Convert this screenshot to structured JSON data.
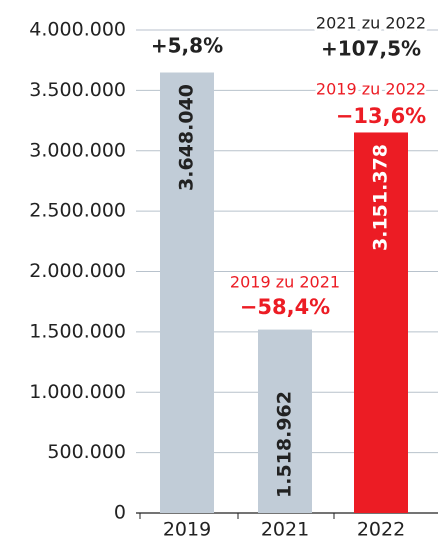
{
  "chart_data": {
    "type": "bar",
    "categories": [
      "2019",
      "2021",
      "2022"
    ],
    "values": [
      3648040,
      1518962,
      3151378
    ],
    "value_labels": [
      "3.648.040",
      "1.518.962",
      "3.151.378"
    ],
    "colors": [
      "#c1ccd7",
      "#c1ccd7",
      "#ec1c24"
    ],
    "ylim": [
      0,
      4000000
    ],
    "yticks": [
      {
        "value": 0,
        "label": "0"
      },
      {
        "value": 500000,
        "label": "500.000"
      },
      {
        "value": 1000000,
        "label": "1.000.000"
      },
      {
        "value": 1500000,
        "label": "1.500.000"
      },
      {
        "value": 2000000,
        "label": "2.000.000"
      },
      {
        "value": 2500000,
        "label": "2.500.000"
      },
      {
        "value": 3000000,
        "label": "3.000.000"
      },
      {
        "value": 3500000,
        "label": "3.500.000"
      },
      {
        "value": 4000000,
        "label": "4.000.000"
      }
    ],
    "grid": true,
    "annotations": [
      {
        "text": "+5,8%",
        "color": "#222222"
      },
      {
        "text": "2019 zu 2021",
        "color": "#ec1c24"
      },
      {
        "text": "−58,4%",
        "color": "#ec1c24"
      },
      {
        "text": "2021 zu 2022",
        "color": "#222222"
      },
      {
        "text": "+107,5%",
        "color": "#222222"
      },
      {
        "text": "2019 zu 2022",
        "color": "#ec1c24"
      },
      {
        "text": "−13,6%",
        "color": "#ec1c24"
      }
    ]
  }
}
